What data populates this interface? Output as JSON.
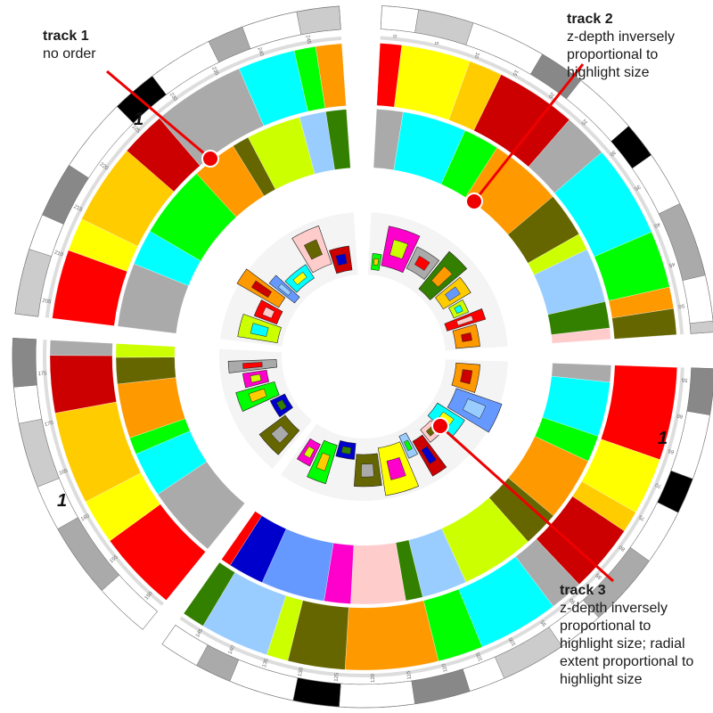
{
  "annotations": [
    {
      "title": "track 1",
      "lines": [
        "no order"
      ]
    },
    {
      "title": "track 2",
      "lines": [
        "z-depth inversely",
        "proportional to",
        "highlight size"
      ]
    },
    {
      "title": "track 3",
      "lines": [
        "z-depth inversely",
        "proportional to",
        "highlight size; radial",
        "extent proportional to",
        "highlight size"
      ]
    }
  ],
  "chromosome_labels": [
    "1",
    "1",
    "1"
  ],
  "ideogram_ticks": {
    "segment_1": [
      "0",
      "5",
      "10",
      "15",
      "20",
      "25",
      "30",
      "35",
      "40",
      "45",
      "50"
    ],
    "segment_2": [
      "55",
      "60",
      "65",
      "70",
      "75",
      "80",
      "85",
      "90",
      "95",
      "100",
      "105",
      "110",
      "115",
      "120",
      "125",
      "130",
      "135",
      "140",
      "145"
    ],
    "segment_3": [
      "150",
      "155",
      "160",
      "165",
      "170",
      "175"
    ],
    "segment_4": [
      "205",
      "210",
      "215",
      "220",
      "225",
      "230",
      "235",
      "240",
      "245"
    ]
  },
  "colors": {
    "red": "#ff0000",
    "darkred": "#cc0000",
    "green": "#00ff00",
    "darkgreen": "#338000",
    "yellow": "#ffff00",
    "gold": "#ffcc00",
    "orange": "#ff9900",
    "pink": "#ffcccc",
    "magenta": "#ff00cc",
    "blue": "#0000cc",
    "lightblue": "#6699ff",
    "skyblue": "#99ccff",
    "cyan": "#00ffff",
    "olive": "#666600",
    "olivelight": "#999900",
    "lime": "#ccff00",
    "grey": "#aaaaaa",
    "lightgrey": "#cccccc",
    "brown": "#996600",
    "callout": "#ee0000"
  }
}
